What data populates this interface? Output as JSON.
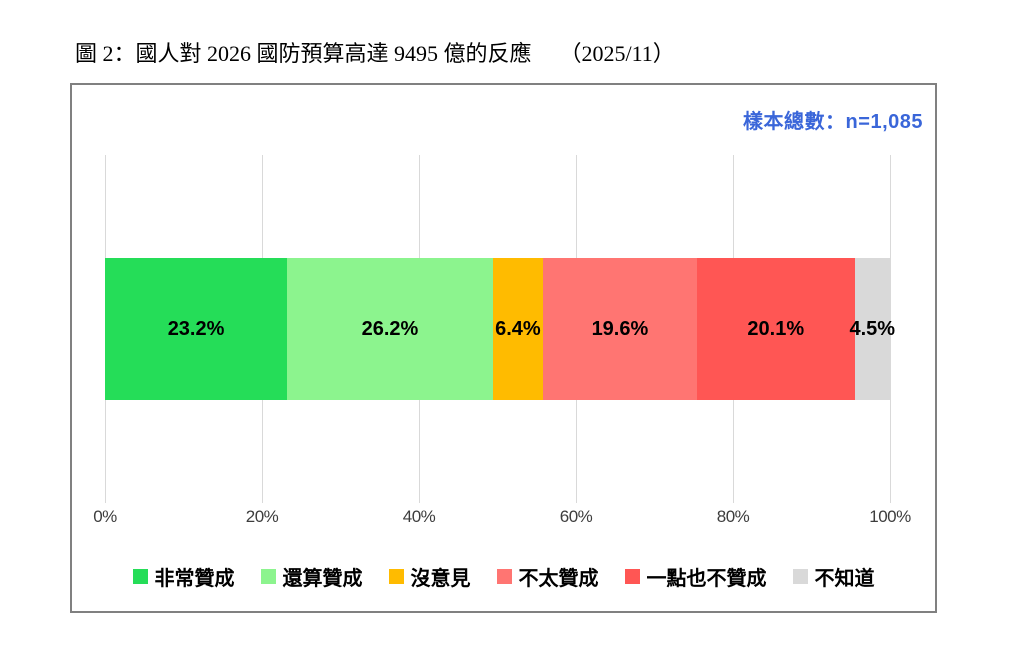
{
  "title": {
    "text": "圖 2：國人對 2026 國防預算高達 9495 億的反應",
    "date": "（2025/11）"
  },
  "sample_label": {
    "text": "樣本總數：n=1,085",
    "color": "#3a66d9"
  },
  "chart_data": {
    "type": "bar",
    "orientation": "horizontal-stacked",
    "title": "圖 2：國人對 2026 國防預算高達 9495 億的反應（2025/11）",
    "sample_size": "n=1,085",
    "categories": [
      "非常贊成",
      "還算贊成",
      "沒意見",
      "不太贊成",
      "一點也不贊成",
      "不知道"
    ],
    "values": [
      23.2,
      26.2,
      6.4,
      19.6,
      20.1,
      4.5
    ],
    "value_labels": [
      "23.2%",
      "26.2%",
      "6.4%",
      "19.6%",
      "20.1%",
      "4.5%"
    ],
    "colors": [
      "#25dd58",
      "#8cf48e",
      "#ffbb00",
      "#ff7572",
      "#ff5654",
      "#d9d9d9"
    ],
    "x_ticks": [
      "0%",
      "20%",
      "40%",
      "60%",
      "80%",
      "100%"
    ],
    "x_tick_values": [
      0,
      20,
      40,
      60,
      80,
      100
    ],
    "xlim": [
      0,
      100
    ],
    "grid": true,
    "legend_position": "bottom"
  },
  "style_colors": {
    "panel_border": "#808080",
    "gridline": "#d9d9d9",
    "axis_label": "#3d3d3d"
  }
}
